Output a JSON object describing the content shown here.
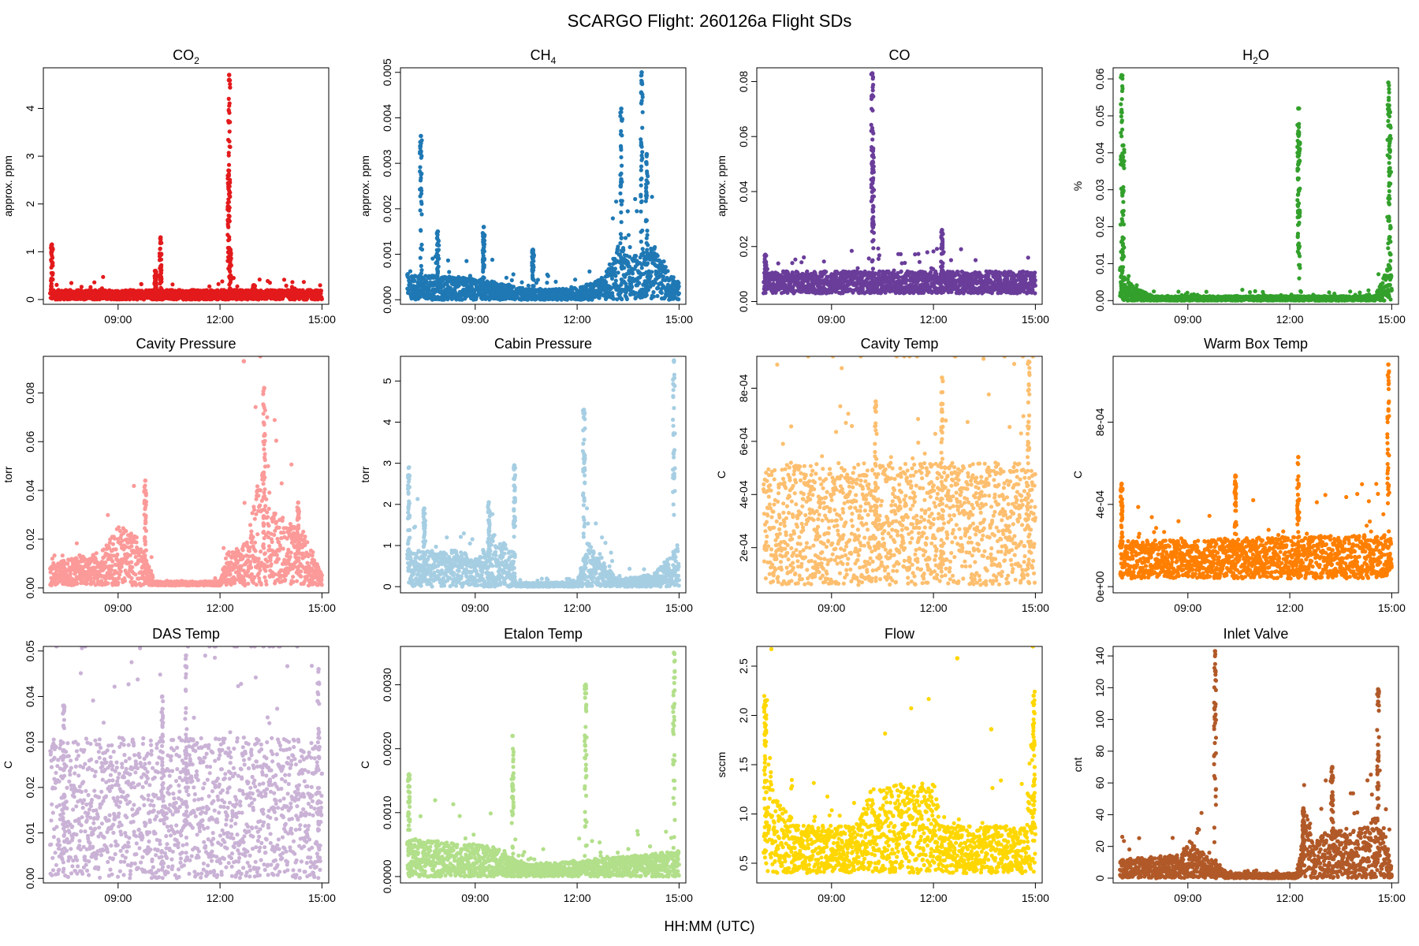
{
  "figure": {
    "title": "SCARGO Flight: 260126a  Flight SDs",
    "xlabel": "HH:MM (UTC)"
  },
  "chart_data": [
    {
      "type": "scatter",
      "key": "co2",
      "title": "CO2",
      "title_main": "CO",
      "title_sub": "2",
      "ylabel": "approx. ppm",
      "color": "#e31a1c",
      "ylim": [
        -0.1,
        4.85
      ],
      "yticks": [
        0,
        1,
        2,
        3,
        4
      ],
      "ytick_labels": [
        "0",
        "1",
        "2",
        "3",
        "4"
      ],
      "xlim": [
        6.8,
        15.2
      ],
      "xticks": [
        9,
        12,
        15
      ],
      "xtick_labels": [
        "09:00",
        "12:00",
        "15:00"
      ],
      "baseline": {
        "t_start": 7.0,
        "t_end": 15.0,
        "lo": 0,
        "hi": 0.2,
        "anchors": [
          [
            7.0,
            1.0
          ],
          [
            7.5,
            1.0
          ],
          [
            8.0,
            1.0
          ],
          [
            15.0,
            1.0
          ]
        ]
      },
      "spikes": [
        {
          "t": 7.05,
          "peak": 1.15
        },
        {
          "t": 10.25,
          "peak": 1.3
        },
        {
          "t": 10.1,
          "peak": 0.6
        },
        {
          "t": 12.27,
          "peak": 4.7
        },
        {
          "t": 12.25,
          "peak": 2.7
        },
        {
          "t": 12.3,
          "peak": 1.05
        },
        {
          "t": 13.0,
          "peak": 0.3
        }
      ],
      "outliers": [
        [
          12.27,
          4.6
        ],
        [
          12.25,
          2.6
        ]
      ]
    },
    {
      "type": "scatter",
      "key": "ch4",
      "title": "CH4",
      "title_main": "CH",
      "title_sub": "4",
      "ylabel": "approx. ppm",
      "color": "#1f78b4",
      "ylim": [
        -0.0001,
        0.0051
      ],
      "yticks": [
        0,
        0.001,
        0.002,
        0.003,
        0.004,
        0.005
      ],
      "ytick_labels": [
        "0.000",
        "0.001",
        "0.002",
        "0.003",
        "0.004",
        "0.005"
      ],
      "xlim": [
        6.8,
        15.2
      ],
      "xticks": [
        9,
        12,
        15
      ],
      "xtick_labels": [
        "09:00",
        "12:00",
        "15:00"
      ],
      "baseline": {
        "t_start": 7.0,
        "t_end": 15.0,
        "lo": 0,
        "hi": 0.0004,
        "anchors": [
          [
            7.0,
            1.4
          ],
          [
            9.0,
            1.2
          ],
          [
            10.5,
            0.6
          ],
          [
            12.0,
            0.6
          ],
          [
            12.8,
            1.3
          ],
          [
            13.2,
            3.0
          ],
          [
            13.8,
            2.5
          ],
          [
            14.3,
            3.0
          ],
          [
            14.8,
            1.3
          ],
          [
            15.0,
            1.0
          ]
        ]
      },
      "spikes": [
        {
          "t": 7.4,
          "peak": 0.0036
        },
        {
          "t": 7.9,
          "peak": 0.0015
        },
        {
          "t": 9.25,
          "peak": 0.0016
        },
        {
          "t": 10.7,
          "peak": 0.0011
        },
        {
          "t": 13.3,
          "peak": 0.0042
        },
        {
          "t": 13.9,
          "peak": 0.005
        },
        {
          "t": 14.05,
          "peak": 0.0032
        }
      ],
      "outliers": []
    },
    {
      "type": "scatter",
      "key": "co",
      "title": "CO",
      "title_main": "CO",
      "title_sub": "",
      "ylabel": "approx. ppm",
      "color": "#6a3d9a",
      "ylim": [
        -0.001,
        0.085
      ],
      "yticks": [
        0,
        0.02,
        0.04,
        0.06,
        0.08
      ],
      "ytick_labels": [
        "0.00",
        "0.02",
        "0.04",
        "0.06",
        "0.08"
      ],
      "xlim": [
        6.8,
        15.2
      ],
      "xticks": [
        9,
        12,
        15
      ],
      "xtick_labels": [
        "09:00",
        "12:00",
        "15:00"
      ],
      "baseline": {
        "t_start": 7.0,
        "t_end": 15.0,
        "lo": 0.003,
        "hi": 0.011,
        "anchors": [
          [
            7.0,
            1.0
          ],
          [
            15.0,
            1.0
          ]
        ]
      },
      "spikes": [
        {
          "t": 7.05,
          "peak": 0.017
        },
        {
          "t": 10.2,
          "peak": 0.083
        },
        {
          "t": 10.22,
          "peak": 0.055
        },
        {
          "t": 12.25,
          "peak": 0.026
        }
      ],
      "outliers": [
        [
          10.2,
          0.075
        ],
        [
          10.2,
          0.053
        ],
        [
          10.22,
          0.027
        ]
      ]
    },
    {
      "type": "scatter",
      "key": "h2o",
      "title": "H2O",
      "title_main": "H",
      "title_sub": "2",
      "title_after": "O",
      "ylabel": "%",
      "color": "#33a02c",
      "ylim": [
        -0.001,
        0.063
      ],
      "yticks": [
        0,
        0.01,
        0.02,
        0.03,
        0.04,
        0.05,
        0.06
      ],
      "ytick_labels": [
        "0.00",
        "0.01",
        "0.02",
        "0.03",
        "0.04",
        "0.05",
        "0.06"
      ],
      "xlim": [
        6.8,
        15.2
      ],
      "xticks": [
        9,
        12,
        15
      ],
      "xtick_labels": [
        "09:00",
        "12:00",
        "15:00"
      ],
      "baseline": {
        "t_start": 7.0,
        "t_end": 15.0,
        "lo": 0,
        "hi": 0.0012,
        "anchors": [
          [
            7.0,
            8.0
          ],
          [
            7.4,
            3.0
          ],
          [
            8.0,
            1.0
          ],
          [
            14.5,
            1.0
          ],
          [
            14.8,
            6.0
          ],
          [
            15.0,
            10.0
          ]
        ]
      },
      "spikes": [
        {
          "t": 7.05,
          "peak": 0.061
        },
        {
          "t": 7.1,
          "peak": 0.042
        },
        {
          "t": 12.25,
          "peak": 0.052
        },
        {
          "t": 12.27,
          "peak": 0.045
        },
        {
          "t": 14.9,
          "peak": 0.059
        },
        {
          "t": 14.95,
          "peak": 0.051
        }
      ],
      "outliers": []
    },
    {
      "type": "scatter",
      "key": "cavity_pressure",
      "title": "Cavity Pressure",
      "ylabel": "torr",
      "color": "#fb9a99",
      "ylim": [
        -0.002,
        0.095
      ],
      "yticks": [
        0,
        0.02,
        0.04,
        0.06,
        0.08
      ],
      "ytick_labels": [
        "0.00",
        "0.02",
        "0.04",
        "0.06",
        "0.08"
      ],
      "xlim": [
        6.8,
        15.2
      ],
      "xticks": [
        9,
        12,
        15
      ],
      "xtick_labels": [
        "09:00",
        "12:00",
        "15:00"
      ],
      "baseline": {
        "t_start": 7.0,
        "t_end": 15.0,
        "lo": 0.001,
        "hi": 0.012,
        "anchors": [
          [
            7.0,
            0.8
          ],
          [
            8.5,
            1.3
          ],
          [
            9.0,
            2.2
          ],
          [
            9.5,
            2.0
          ],
          [
            10.0,
            0.5
          ],
          [
            10.05,
            0.15
          ],
          [
            12.0,
            0.15
          ],
          [
            12.2,
            1.2
          ],
          [
            12.8,
            1.7
          ],
          [
            13.2,
            4.5
          ],
          [
            13.5,
            3.0
          ],
          [
            14.0,
            2.4
          ],
          [
            14.5,
            2.0
          ],
          [
            15.0,
            0.4
          ]
        ]
      },
      "spikes": [
        {
          "t": 9.8,
          "peak": 0.044
        },
        {
          "t": 13.3,
          "peak": 0.082
        },
        {
          "t": 14.3,
          "peak": 0.035
        }
      ],
      "outliers": [
        [
          12.7,
          0.093
        ]
      ]
    },
    {
      "type": "scatter",
      "key": "cabin_pressure",
      "title": "Cabin Pressure",
      "ylabel": "torr",
      "color": "#a6cee3",
      "ylim": [
        -0.15,
        5.6
      ],
      "yticks": [
        0,
        1,
        2,
        3,
        4,
        5
      ],
      "ytick_labels": [
        "0",
        "1",
        "2",
        "3",
        "4",
        "5"
      ],
      "xlim": [
        6.8,
        15.2
      ],
      "xticks": [
        9,
        12,
        15
      ],
      "xtick_labels": [
        "09:00",
        "12:00",
        "15:00"
      ],
      "baseline": {
        "t_start": 7.0,
        "t_end": 15.0,
        "lo": 0,
        "hi": 0.55,
        "anchors": [
          [
            7.0,
            1.6
          ],
          [
            8.6,
            1.6
          ],
          [
            9.0,
            1.2
          ],
          [
            9.6,
            2.4
          ],
          [
            10.1,
            1.5
          ],
          [
            10.2,
            0.15
          ],
          [
            12.0,
            0.2
          ],
          [
            12.3,
            2.0
          ],
          [
            12.7,
            1.2
          ],
          [
            13.2,
            0.3
          ],
          [
            14.3,
            0.6
          ],
          [
            14.8,
            1.5
          ],
          [
            15.0,
            2.0
          ]
        ]
      },
      "spikes": [
        {
          "t": 7.05,
          "peak": 2.9
        },
        {
          "t": 7.5,
          "peak": 1.9
        },
        {
          "t": 9.4,
          "peak": 2.05
        },
        {
          "t": 10.15,
          "peak": 2.95
        },
        {
          "t": 12.2,
          "peak": 4.3
        },
        {
          "t": 14.85,
          "peak": 5.5
        }
      ],
      "outliers": []
    },
    {
      "type": "scatter",
      "key": "cavity_temp",
      "title": "Cavity Temp",
      "ylabel": "C",
      "color": "#fdbf6f",
      "ylim": [
        3e-05,
        0.00092
      ],
      "yticks": [
        0.0002,
        0.0004,
        0.0006,
        0.0008
      ],
      "ytick_labels": [
        "2e-04",
        "4e-04",
        "6e-04",
        "8e-04"
      ],
      "xlim": [
        6.8,
        15.2
      ],
      "xticks": [
        9,
        12,
        15
      ],
      "xtick_labels": [
        "09:00",
        "12:00",
        "15:00"
      ],
      "baseline": {
        "t_start": 7.0,
        "t_end": 15.0,
        "lo": 6e-05,
        "hi": 0.00052,
        "anchors": [
          [
            7.0,
            1.0
          ],
          [
            15.0,
            1.0
          ]
        ]
      },
      "spikes": [
        {
          "t": 10.3,
          "peak": 0.00075
        },
        {
          "t": 12.25,
          "peak": 0.00084
        },
        {
          "t": 14.8,
          "peak": 0.0009
        }
      ],
      "outliers": []
    },
    {
      "type": "scatter",
      "key": "warm_box_temp",
      "title": "Warm Box Temp",
      "ylabel": "C",
      "color": "#ff7f00",
      "ylim": [
        -3e-05,
        0.00112
      ],
      "yticks": [
        0,
        0.0004,
        0.0008
      ],
      "ytick_labels": [
        "0e+00",
        "4e-04",
        "8e-04"
      ],
      "xlim": [
        6.8,
        15.2
      ],
      "xticks": [
        9,
        12,
        15
      ],
      "xtick_labels": [
        "09:00",
        "12:00",
        "15:00"
      ],
      "baseline": {
        "t_start": 7.0,
        "t_end": 15.0,
        "lo": 4e-05,
        "hi": 0.00022,
        "anchors": [
          [
            7.0,
            1.0
          ],
          [
            15.0,
            1.2
          ]
        ]
      },
      "spikes": [
        {
          "t": 7.05,
          "peak": 0.0005
        },
        {
          "t": 10.4,
          "peak": 0.00054
        },
        {
          "t": 12.25,
          "peak": 0.00063
        },
        {
          "t": 14.9,
          "peak": 0.00108
        }
      ],
      "outliers": []
    },
    {
      "type": "scatter",
      "key": "das_temp",
      "title": "DAS Temp",
      "ylabel": "C",
      "color": "#cab2d6",
      "ylim": [
        -0.001,
        0.051
      ],
      "yticks": [
        0,
        0.01,
        0.02,
        0.03,
        0.04,
        0.05
      ],
      "ytick_labels": [
        "0.00",
        "0.01",
        "0.02",
        "0.03",
        "0.04",
        "0.05"
      ],
      "xlim": [
        6.8,
        15.2
      ],
      "xticks": [
        9,
        12,
        15
      ],
      "xtick_labels": [
        "09:00",
        "12:00",
        "15:00"
      ],
      "baseline": {
        "t_start": 7.0,
        "t_end": 15.0,
        "lo": 0.0,
        "hi": 0.031,
        "anchors": [
          [
            7.0,
            1.0
          ],
          [
            15.0,
            1.0
          ]
        ]
      },
      "spikes": [
        {
          "t": 7.4,
          "peak": 0.038
        },
        {
          "t": 10.3,
          "peak": 0.04
        },
        {
          "t": 11.0,
          "peak": 0.049
        },
        {
          "t": 14.9,
          "peak": 0.046
        }
      ],
      "outliers": []
    },
    {
      "type": "scatter",
      "key": "etalon_temp",
      "title": "Etalon Temp",
      "ylabel": "C",
      "color": "#b2df8a",
      "ylim": [
        -0.0001,
        0.0036
      ],
      "yticks": [
        0,
        0.001,
        0.002,
        0.003
      ],
      "ytick_labels": [
        "0.0000",
        "0.0010",
        "0.0020",
        "0.0030"
      ],
      "xlim": [
        6.8,
        15.2
      ],
      "xticks": [
        9,
        12,
        15
      ],
      "xtick_labels": [
        "09:00",
        "12:00",
        "15:00"
      ],
      "baseline": {
        "t_start": 7.0,
        "t_end": 15.0,
        "lo": 0,
        "hi": 0.0004,
        "anchors": [
          [
            7.0,
            1.5
          ],
          [
            9.5,
            1.2
          ],
          [
            10.5,
            0.5
          ],
          [
            12.0,
            0.6
          ],
          [
            15.0,
            1.0
          ]
        ]
      },
      "spikes": [
        {
          "t": 7.05,
          "peak": 0.0016
        },
        {
          "t": 10.1,
          "peak": 0.0022
        },
        {
          "t": 12.25,
          "peak": 0.003
        },
        {
          "t": 14.85,
          "peak": 0.0035
        }
      ],
      "outliers": []
    },
    {
      "type": "scatter",
      "key": "flow",
      "title": "Flow",
      "ylabel": "sccm",
      "color": "#ffd700",
      "ylim": [
        0.3,
        2.7
      ],
      "yticks": [
        0.5,
        1.0,
        1.5,
        2.0,
        2.5
      ],
      "ytick_labels": [
        "0.5",
        "1.0",
        "1.5",
        "2.0",
        "2.5"
      ],
      "xlim": [
        6.8,
        15.2
      ],
      "xticks": [
        9,
        12,
        15
      ],
      "xtick_labels": [
        "09:00",
        "12:00",
        "15:00"
      ],
      "baseline": {
        "t_start": 7.0,
        "t_end": 15.0,
        "lo": 0.4,
        "hi": 0.8,
        "anchors": [
          [
            7.0,
            5.0
          ],
          [
            7.3,
            2.0
          ],
          [
            8.0,
            1.2
          ],
          [
            9.8,
            1.2
          ],
          [
            10.0,
            2.2
          ],
          [
            12.0,
            2.3
          ],
          [
            12.3,
            1.2
          ],
          [
            14.7,
            1.2
          ],
          [
            15.0,
            5.0
          ]
        ]
      },
      "spikes": [
        {
          "t": 7.05,
          "peak": 2.15
        },
        {
          "t": 14.95,
          "peak": 2.2
        }
      ],
      "outliers": [
        [
          12.7,
          2.58
        ],
        [
          13.7,
          1.86
        ]
      ]
    },
    {
      "type": "scatter",
      "key": "inlet_valve",
      "title": "Inlet Valve",
      "ylabel": "cnt",
      "color": "#b15928",
      "ylim": [
        -3,
        146
      ],
      "yticks": [
        0,
        20,
        40,
        60,
        80,
        100,
        120,
        140
      ],
      "ytick_labels": [
        "0",
        "20",
        "40",
        "60",
        "80",
        "100",
        "120",
        "140"
      ],
      "xlim": [
        6.8,
        15.2
      ],
      "xticks": [
        9,
        12,
        15
      ],
      "xtick_labels": [
        "09:00",
        "12:00",
        "15:00"
      ],
      "baseline": {
        "t_start": 7.0,
        "t_end": 15.0,
        "lo": 0,
        "hi": 10,
        "anchors": [
          [
            7.0,
            1.2
          ],
          [
            8.8,
            1.5
          ],
          [
            9.0,
            2.5
          ],
          [
            9.5,
            1.5
          ],
          [
            10.2,
            0.3
          ],
          [
            12.2,
            0.3
          ],
          [
            12.5,
            4.0
          ],
          [
            12.7,
            2.0
          ],
          [
            13.0,
            3.0
          ],
          [
            14.0,
            3.0
          ],
          [
            14.6,
            4.0
          ],
          [
            15.0,
            1.0
          ]
        ]
      },
      "spikes": [
        {
          "t": 9.8,
          "peak": 143
        },
        {
          "t": 12.4,
          "peak": 44
        },
        {
          "t": 13.25,
          "peak": 70
        },
        {
          "t": 14.6,
          "peak": 119
        }
      ],
      "outliers": []
    }
  ]
}
